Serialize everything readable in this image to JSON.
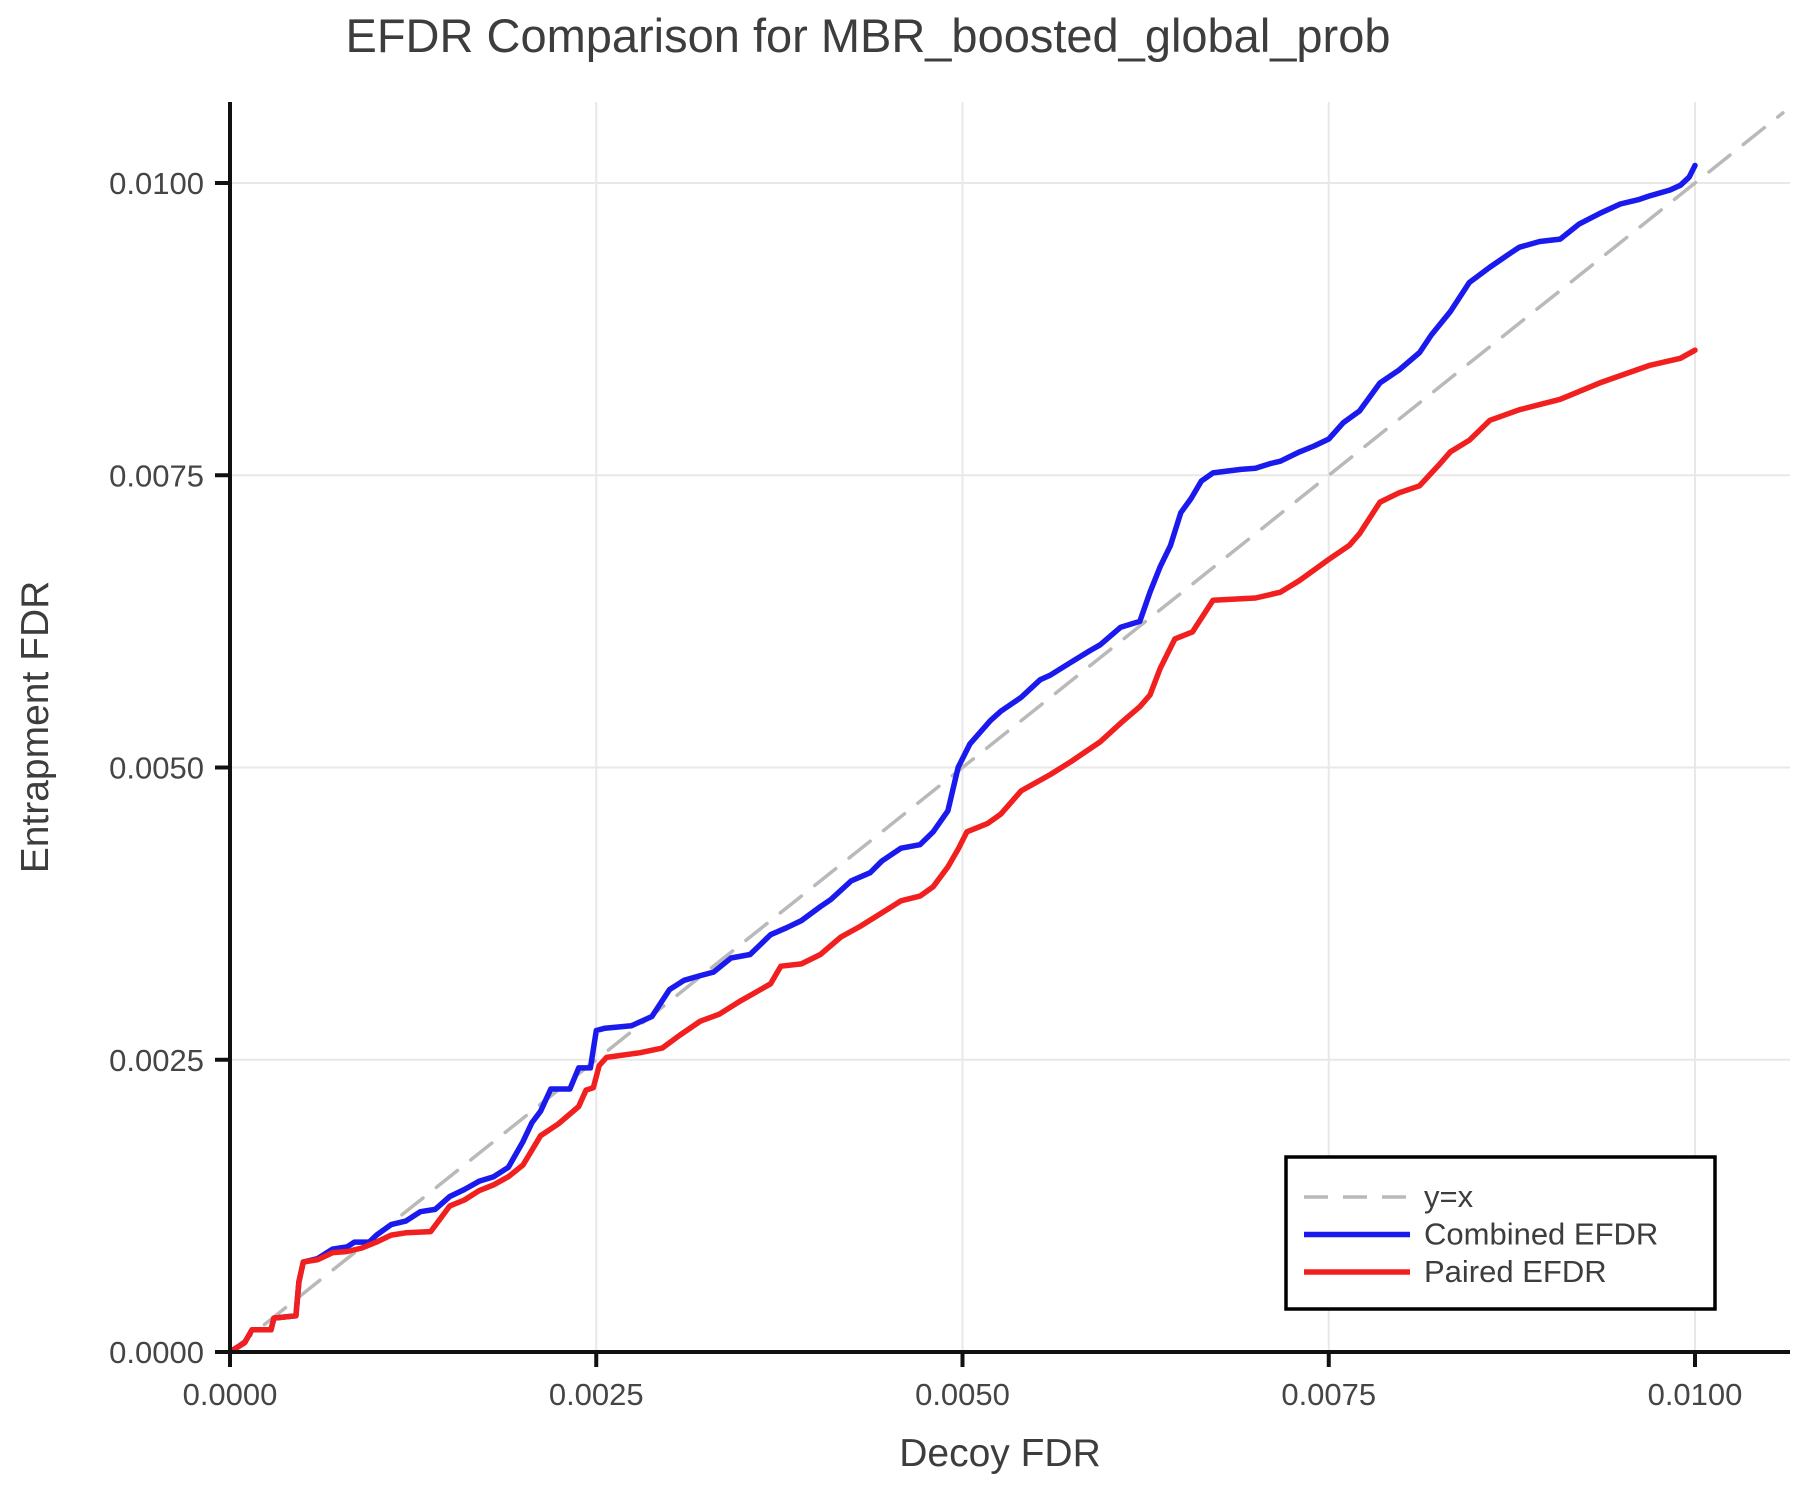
{
  "title": "EFDR Comparison for MBR_boosted_global_prob",
  "xlabel": "Decoy FDR",
  "ylabel": "Entrapment FDR",
  "x_ticks": [
    "0.0000",
    "0.0025",
    "0.0050",
    "0.0075",
    "0.0100"
  ],
  "y_ticks": [
    "0.0000",
    "0.0025",
    "0.0050",
    "0.0075",
    "0.0100"
  ],
  "colors": {
    "combined": "#1a1aee",
    "paired": "#f21f1f",
    "identity": "#b9b9b9",
    "grid": "#e8e8e8",
    "spine": "#111111",
    "text": "#3d3d3d",
    "legend_border": "#000000",
    "background": "#ffffff"
  },
  "legend": {
    "items": [
      {
        "label": "y=x",
        "color": "#b9b9b9",
        "dashed": true
      },
      {
        "label": "Combined EFDR",
        "color": "#1a1aee",
        "dashed": false
      },
      {
        "label": "Paired EFDR",
        "color": "#f21f1f",
        "dashed": false
      }
    ]
  },
  "chart_data": {
    "type": "line",
    "title": "EFDR Comparison for MBR_boosted_global_prob",
    "xlabel": "Decoy FDR",
    "ylabel": "Entrapment FDR",
    "xlim": [
      0,
      0.0106
    ],
    "ylim": [
      0,
      0.0107
    ],
    "x_tick_values": [
      0.0,
      0.0025,
      0.005,
      0.0075,
      0.01
    ],
    "y_tick_values": [
      0.0,
      0.0025,
      0.005,
      0.0075,
      0.01
    ],
    "grid": true,
    "legend_position": "lower right",
    "series": [
      {
        "name": "y=x",
        "style": "dashed",
        "color": "#b9b9b9",
        "x": [
          0,
          0.0106
        ],
        "y": [
          0,
          0.0106
        ]
      },
      {
        "name": "Combined EFDR",
        "style": "solid",
        "color": "#1a1aee",
        "x": [
          0,
          0.0001,
          0.00015,
          0.00028,
          0.0003,
          0.00045,
          0.00047,
          0.0005,
          0.0006,
          0.0007,
          0.0008,
          0.00085,
          0.00095,
          0.001,
          0.0011,
          0.0012,
          0.0013,
          0.0014,
          0.0015,
          0.0016,
          0.0017,
          0.0018,
          0.0019,
          0.002,
          0.00206,
          0.00212,
          0.00219,
          0.00232,
          0.00238,
          0.00246,
          0.0025,
          0.00256,
          0.00274,
          0.00288,
          0.003,
          0.0031,
          0.00321,
          0.0033,
          0.00342,
          0.00355,
          0.00369,
          0.0038,
          0.0039,
          0.00403,
          0.0041,
          0.00424,
          0.00437,
          0.00445,
          0.00458,
          0.00471,
          0.0048,
          0.0049,
          0.00497,
          0.00505,
          0.00519,
          0.00526,
          0.0054,
          0.00553,
          0.0056,
          0.00574,
          0.00587,
          0.00594,
          0.00608,
          0.00621,
          0.00628,
          0.00635,
          0.00642,
          0.00649,
          0.00656,
          0.00663,
          0.00671,
          0.0069,
          0.007,
          0.0071,
          0.00717,
          0.0073,
          0.0074,
          0.0075,
          0.0076,
          0.00771,
          0.00785,
          0.00798,
          0.00812,
          0.0082,
          0.00833,
          0.00846,
          0.0086,
          0.00874,
          0.0088,
          0.00894,
          0.00908,
          0.00921,
          0.00935,
          0.00949,
          0.00962,
          0.00969,
          0.00983,
          0.0099,
          0.00996,
          0.01
        ],
        "y": [
          0,
          8e-05,
          0.00019,
          0.00019,
          0.00029,
          0.00031,
          0.0006,
          0.00077,
          0.0008,
          0.00088,
          0.0009,
          0.00094,
          0.00094,
          0.001,
          0.00109,
          0.00112,
          0.0012,
          0.00122,
          0.00133,
          0.00139,
          0.00146,
          0.0015,
          0.00158,
          0.0018,
          0.00196,
          0.00206,
          0.00225,
          0.00225,
          0.00243,
          0.00243,
          0.00275,
          0.00277,
          0.00279,
          0.00287,
          0.0031,
          0.00318,
          0.00322,
          0.00325,
          0.00337,
          0.0034,
          0.00357,
          0.00363,
          0.00369,
          0.00381,
          0.00387,
          0.00403,
          0.0041,
          0.0042,
          0.00431,
          0.00434,
          0.00445,
          0.00463,
          0.005,
          0.0052,
          0.0054,
          0.00548,
          0.0056,
          0.00575,
          0.00579,
          0.0059,
          0.006,
          0.00605,
          0.0062,
          0.00625,
          0.0065,
          0.00672,
          0.0069,
          0.00718,
          0.0073,
          0.00745,
          0.00752,
          0.00755,
          0.00756,
          0.0076,
          0.00762,
          0.0077,
          0.00775,
          0.00781,
          0.00795,
          0.00805,
          0.00829,
          0.0084,
          0.00855,
          0.0087,
          0.0089,
          0.00915,
          0.00928,
          0.0094,
          0.00945,
          0.0095,
          0.00952,
          0.00965,
          0.00974,
          0.00982,
          0.00986,
          0.00989,
          0.00994,
          0.00998,
          0.01005,
          0.01015
        ]
      },
      {
        "name": "Paired EFDR",
        "style": "solid",
        "color": "#f21f1f",
        "x": [
          0,
          0.0001,
          0.00015,
          0.00028,
          0.0003,
          0.00045,
          0.00047,
          0.0005,
          0.0006,
          0.0007,
          0.0008,
          0.0009,
          0.001,
          0.0011,
          0.0012,
          0.00137,
          0.0015,
          0.0016,
          0.0017,
          0.0018,
          0.0019,
          0.002,
          0.00212,
          0.00224,
          0.00238,
          0.00243,
          0.00248,
          0.00252,
          0.00257,
          0.0028,
          0.00295,
          0.00307,
          0.00321,
          0.00334,
          0.00348,
          0.00355,
          0.00369,
          0.00376,
          0.0039,
          0.00403,
          0.00417,
          0.0043,
          0.00458,
          0.00471,
          0.0048,
          0.0049,
          0.00497,
          0.00503,
          0.00517,
          0.00526,
          0.0054,
          0.0056,
          0.00574,
          0.00594,
          0.00608,
          0.00621,
          0.00628,
          0.00635,
          0.00645,
          0.00657,
          0.00671,
          0.007,
          0.00717,
          0.0073,
          0.0075,
          0.00764,
          0.00771,
          0.00785,
          0.00798,
          0.00812,
          0.00826,
          0.00833,
          0.00846,
          0.0086,
          0.0088,
          0.00908,
          0.00935,
          0.00969,
          0.0099,
          0.01
        ],
        "y": [
          0,
          8e-05,
          0.00019,
          0.00019,
          0.00029,
          0.00031,
          0.0006,
          0.00077,
          0.00079,
          0.00085,
          0.00086,
          0.00089,
          0.00094,
          0.001,
          0.00102,
          0.00103,
          0.00125,
          0.0013,
          0.00138,
          0.00143,
          0.0015,
          0.0016,
          0.00185,
          0.00195,
          0.0021,
          0.00224,
          0.00226,
          0.00245,
          0.00252,
          0.00256,
          0.0026,
          0.00271,
          0.00283,
          0.00289,
          0.003,
          0.00305,
          0.00315,
          0.0033,
          0.00332,
          0.0034,
          0.00355,
          0.00364,
          0.00386,
          0.0039,
          0.00398,
          0.00415,
          0.0043,
          0.00445,
          0.00452,
          0.0046,
          0.0048,
          0.00494,
          0.00505,
          0.00522,
          0.00538,
          0.00552,
          0.00562,
          0.00585,
          0.0061,
          0.00616,
          0.00643,
          0.00645,
          0.0065,
          0.0066,
          0.00678,
          0.0069,
          0.007,
          0.00727,
          0.00735,
          0.00741,
          0.0076,
          0.0077,
          0.0078,
          0.00797,
          0.00806,
          0.00815,
          0.00829,
          0.00844,
          0.0085,
          0.00857
        ]
      }
    ]
  }
}
